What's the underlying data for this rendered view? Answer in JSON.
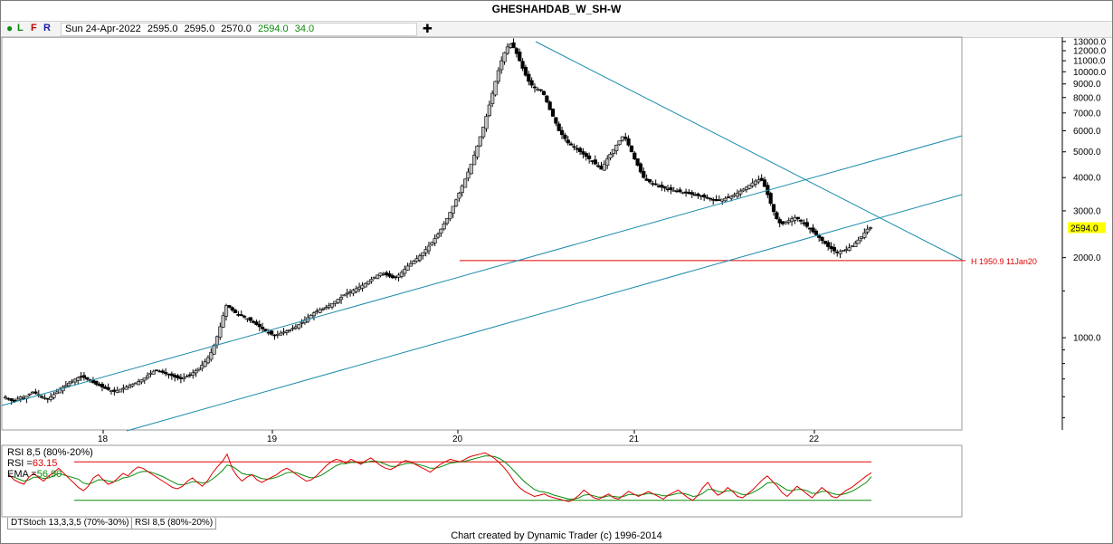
{
  "window": {
    "title": "GHESHAHDAB_W_SH-W"
  },
  "toolbar": {
    "icons": [
      "green-dot-icon",
      "plus-icon"
    ],
    "buttons": [
      "L",
      "F",
      "R"
    ],
    "quote": {
      "date": "Sun 24-Apr-2022",
      "open": "2595.0",
      "high": "2595.0",
      "low": "2570.0",
      "close": "2594.0",
      "change": "34.0"
    }
  },
  "colors": {
    "up_candle": "#c0c0c0",
    "down_candle": "#000000",
    "trendline": "#1b8bab",
    "hline": "#e00000",
    "rsi": "#e00000",
    "ema": "#0a8a0a",
    "last_price_bg": "#ffff00"
  },
  "chart_data": [
    {
      "type": "candlestick",
      "y_scale": "log",
      "ylim": [
        450,
        13500
      ],
      "y_ticks": [
        "13000.0",
        "12000.0",
        "11000.0",
        "10000.0",
        "9000.0",
        "8000.0",
        "7000.0",
        "6000.0",
        "5000.0",
        "4000.0",
        "3000.0",
        "2000.0",
        "1000.0"
      ],
      "x_ticks": [
        "18",
        "19",
        "20",
        "21",
        "22"
      ],
      "last_price_label": "2594.0",
      "annotation": "H 1950.9 11Jan20",
      "horizontal_line": 1950.9,
      "close_series": [
        598,
        590,
        580,
        575,
        588,
        600,
        596,
        604,
        615,
        625,
        618,
        606,
        598,
        594,
        590,
        600,
        612,
        626,
        640,
        652,
        662,
        675,
        686,
        698,
        708,
        714,
        708,
        698,
        688,
        678,
        668,
        660,
        652,
        644,
        638,
        632,
        628,
        634,
        640,
        646,
        652,
        660,
        668,
        676,
        684,
        694,
        706,
        720,
        735,
        748,
        756,
        748,
        740,
        732,
        728,
        720,
        712,
        705,
        700,
        708,
        716,
        726,
        738,
        752,
        768,
        788,
        812,
        842,
        880,
        935,
        1010,
        1100,
        1210,
        1320,
        1300,
        1270,
        1240,
        1220,
        1210,
        1195,
        1180,
        1160,
        1140,
        1120,
        1100,
        1080,
        1060,
        1045,
        1030,
        1020,
        1030,
        1040,
        1050,
        1060,
        1070,
        1085,
        1100,
        1120,
        1140,
        1165,
        1190,
        1215,
        1240,
        1260,
        1275,
        1285,
        1300,
        1320,
        1345,
        1370,
        1395,
        1420,
        1448,
        1470,
        1490,
        1510,
        1530,
        1550,
        1575,
        1600,
        1630,
        1660,
        1690,
        1720,
        1750,
        1740,
        1720,
        1700,
        1680,
        1690,
        1720,
        1760,
        1810,
        1860,
        1900,
        1940,
        1985,
        2030,
        2090,
        2150,
        2210,
        2280,
        2360,
        2450,
        2560,
        2680,
        2810,
        2960,
        3120,
        3300,
        3500,
        3720,
        3950,
        4200,
        4500,
        4850,
        5250,
        5700,
        6200,
        6800,
        7500,
        8300,
        9200,
        10100,
        11000,
        11800,
        12400,
        12700,
        12300,
        11700,
        11000,
        10300,
        9700,
        9200,
        8900,
        8700,
        8600,
        8500,
        8200,
        7700,
        7200,
        6800,
        6400,
        6000,
        5800,
        5600,
        5400,
        5300,
        5200,
        5100,
        5000,
        4900,
        4800,
        4700,
        4600,
        4500,
        4400,
        4300,
        4500,
        4700,
        4900,
        5100,
        5300,
        5500,
        5700,
        5600,
        5300,
        5000,
        4700,
        4450,
        4200,
        4000,
        3900,
        3850,
        3800,
        3760,
        3720,
        3680,
        3650,
        3620,
        3600,
        3580,
        3560,
        3540,
        3520,
        3500,
        3480,
        3460,
        3440,
        3420,
        3400,
        3380,
        3350,
        3320,
        3290,
        3270,
        3300,
        3320,
        3340,
        3360,
        3400,
        3450,
        3500,
        3560,
        3620,
        3680,
        3750,
        3820,
        3880,
        3920,
        3900,
        3700,
        3450,
        3200,
        2980,
        2800,
        2700,
        2680,
        2720,
        2760,
        2800,
        2830,
        2800,
        2740,
        2680,
        2620,
        2560,
        2500,
        2440,
        2380,
        2320,
        2260,
        2200,
        2160,
        2120,
        2100,
        2110,
        2130,
        2150,
        2180,
        2220,
        2270,
        2330,
        2400,
        2480,
        2560,
        2594
      ]
    },
    {
      "type": "line",
      "title": "RSI 8,5 (80%-20%)",
      "rsi_label": "RSI =",
      "rsi_value": "63.15",
      "ema_label": "EMA =",
      "ema_value": "56.90",
      "ylim": [
        0,
        100
      ],
      "upper_level": 80,
      "lower_level": 20,
      "series": [
        {
          "name": "RSI",
          "values": [
            60,
            52,
            48,
            45,
            56,
            62,
            55,
            50,
            58,
            63,
            70,
            78,
            62,
            48,
            40,
            35,
            42,
            55,
            60,
            52,
            45,
            48,
            55,
            62,
            58,
            66,
            72,
            70,
            65,
            60,
            55,
            50,
            45,
            40,
            38,
            42,
            50,
            55,
            48,
            42,
            50,
            62,
            72,
            80,
            92,
            70,
            58,
            50,
            56,
            60,
            52,
            48,
            52,
            56,
            60,
            66,
            70,
            66,
            60,
            55,
            50,
            52,
            58,
            66,
            74,
            80,
            84,
            82,
            78,
            84,
            80,
            76,
            82,
            86,
            80,
            74,
            70,
            68,
            72,
            78,
            82,
            80,
            76,
            72,
            68,
            64,
            70,
            76,
            80,
            84,
            82,
            80,
            84,
            88,
            90,
            92,
            94,
            90,
            85,
            78,
            70,
            60,
            48,
            40,
            34,
            30,
            26,
            28,
            30,
            26,
            24,
            22,
            20,
            18,
            22,
            28,
            36,
            30,
            24,
            22,
            26,
            30,
            24,
            22,
            28,
            34,
            30,
            26,
            30,
            34,
            30,
            26,
            22,
            28,
            32,
            36,
            30,
            24,
            20,
            28,
            40,
            48,
            36,
            28,
            32,
            40,
            34,
            26,
            24,
            30,
            36,
            44,
            52,
            58,
            50,
            42,
            32,
            26,
            34,
            42,
            36,
            30,
            24,
            32,
            40,
            34,
            26,
            24,
            30,
            36,
            40,
            46,
            52,
            58,
            63
          ]
        },
        {
          "name": "EMA",
          "values": [
            58,
            56,
            53,
            50,
            52,
            56,
            56,
            54,
            55,
            58,
            62,
            67,
            66,
            60,
            53,
            47,
            45,
            48,
            52,
            52,
            50,
            49,
            51,
            55,
            56,
            59,
            63,
            65,
            65,
            63,
            60,
            57,
            53,
            49,
            45,
            44,
            46,
            49,
            49,
            47,
            48,
            53,
            59,
            66,
            75,
            73,
            68,
            62,
            60,
            60,
            57,
            54,
            53,
            54,
            56,
            59,
            63,
            64,
            63,
            60,
            57,
            55,
            56,
            59,
            64,
            69,
            74,
            77,
            77,
            79,
            79,
            78,
            79,
            81,
            81,
            79,
            76,
            73,
            73,
            75,
            77,
            78,
            77,
            75,
            73,
            70,
            70,
            72,
            75,
            78,
            79,
            80,
            81,
            83,
            85,
            87,
            89,
            89,
            88,
            85,
            80,
            73,
            65,
            57,
            49,
            43,
            37,
            34,
            33,
            31,
            28,
            26,
            24,
            22,
            22,
            24,
            28,
            29,
            27,
            25,
            25,
            27,
            26,
            25,
            26,
            29,
            29,
            28,
            29,
            31,
            30,
            29,
            27,
            27,
            29,
            31,
            31,
            29,
            26,
            27,
            31,
            37,
            37,
            34,
            33,
            35,
            35,
            32,
            29,
            29,
            32,
            36,
            41,
            47,
            48,
            46,
            41,
            36,
            35,
            37,
            37,
            35,
            31,
            31,
            34,
            34,
            31,
            29,
            29,
            31,
            34,
            38,
            43,
            48,
            56.9
          ]
        }
      ]
    }
  ],
  "tabs": [
    "DTStoch 13,3,3,5 (70%-30%)",
    "RSI 8,5 (80%-20%)"
  ],
  "footer": "Chart created by Dynamic Trader  (c) 1996-2014"
}
